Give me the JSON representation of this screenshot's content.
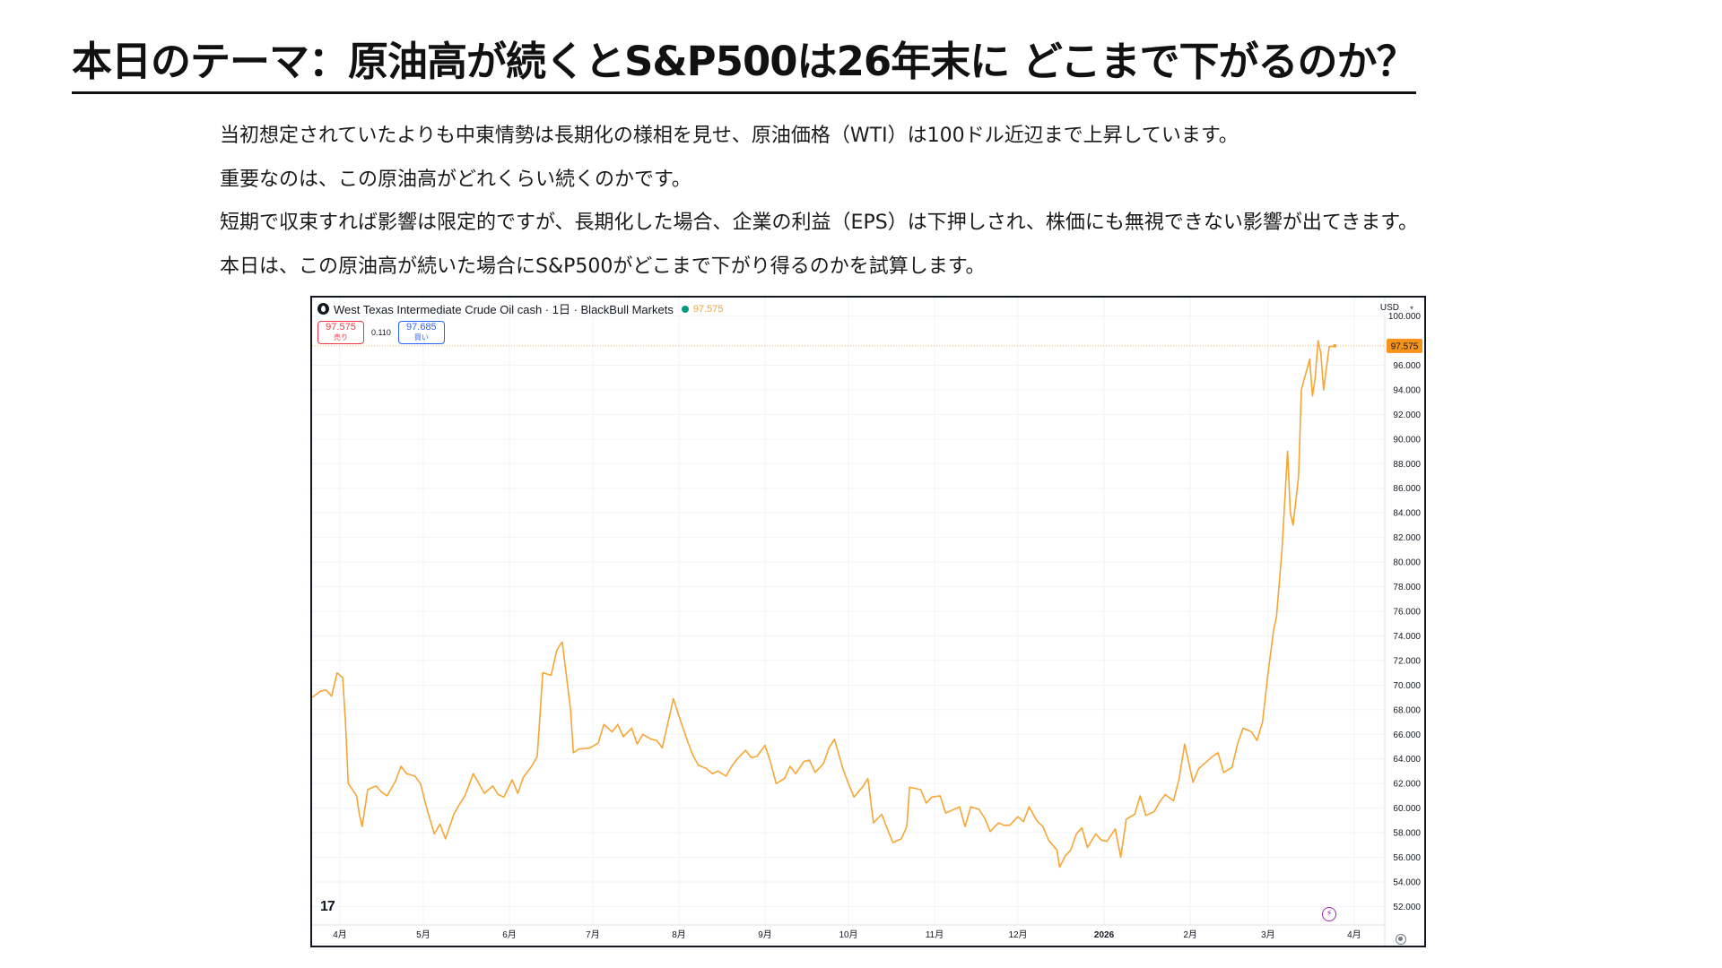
{
  "slide": {
    "title": "本日のテーマ：原油高が続くとS&P500は26年末に どこまで下がるのか？",
    "paragraphs": [
      "当初想定されていたよりも中東情勢は長期化の様相を見せ、原油価格（WTI）は100ドル近辺まで上昇しています。",
      "重要なのは、この原油高がどれくらい続くのかです。",
      "短期で収束すれば影響は限定的ですが、長期化した場合、企業の利益（EPS）は下押しされ、株価にも無視できない影響が出てきます。",
      "本日は、この原油高が続いた場合にS&P500がどこまで下がり得るのかを試算します。"
    ]
  },
  "chart_header": {
    "symbol_title": "West Texas Intermediate Crude Oil cash · 1日 · BlackBull Markets",
    "last_price": "97.575",
    "sell_price": "97.575",
    "sell_label": "売り",
    "spread": "0.110",
    "buy_price": "97.685",
    "buy_label": "買い",
    "currency": "USD",
    "logo_text": "17"
  },
  "colors": {
    "line": "#f7a534",
    "sell": "#f23645",
    "buy": "#2962ff",
    "grid": "#f0f3fa",
    "price_tag_bg": "#f7931a"
  },
  "icons": [
    "symbol-icon",
    "live-dot-icon",
    "caret-down-icon",
    "tradingview-logo",
    "lightning-icon",
    "settings-icon"
  ],
  "chart_data": {
    "type": "line",
    "title": "West Texas Intermediate Crude Oil cash · 1日 · BlackBull Markets",
    "xlabel": "",
    "ylabel": "",
    "ylim": [
      50.5,
      101.5
    ],
    "y_ticks": [
      52,
      54,
      56,
      58,
      60,
      62,
      64,
      66,
      68,
      70,
      72,
      74,
      76,
      78,
      80,
      82,
      84,
      86,
      88,
      90,
      92,
      94,
      96,
      100
    ],
    "x_tick_labels": [
      {
        "label": "4月",
        "x": "2025-04-01"
      },
      {
        "label": "5月",
        "x": "2025-05-01"
      },
      {
        "label": "6月",
        "x": "2025-06-01"
      },
      {
        "label": "7月",
        "x": "2025-07-01"
      },
      {
        "label": "8月",
        "x": "2025-08-01"
      },
      {
        "label": "9月",
        "x": "2025-09-01"
      },
      {
        "label": "10月",
        "x": "2025-10-01"
      },
      {
        "label": "11月",
        "x": "2025-11-01"
      },
      {
        "label": "12月",
        "x": "2025-12-01"
      },
      {
        "label": "2026",
        "x": "2026-01-01"
      },
      {
        "label": "2月",
        "x": "2026-02-01"
      },
      {
        "label": "3月",
        "x": "2026-03-01"
      },
      {
        "label": "4月",
        "x": "2026-04-01"
      }
    ],
    "xlim": [
      "2025-03-22",
      "2026-04-12"
    ],
    "grid": true,
    "last_value": 97.575,
    "series": [
      {
        "color": "#f7a534",
        "points": [
          [
            "2025-03-22",
            69.0
          ],
          [
            "2025-03-25",
            69.5
          ],
          [
            "2025-03-27",
            69.6
          ],
          [
            "2025-03-29",
            69.1
          ],
          [
            "2025-03-31",
            71.0
          ],
          [
            "2025-04-02",
            70.6
          ],
          [
            "2025-04-03",
            67.0
          ],
          [
            "2025-04-04",
            62.0
          ],
          [
            "2025-04-07",
            61.0
          ],
          [
            "2025-04-08",
            59.5
          ],
          [
            "2025-04-09",
            58.5
          ],
          [
            "2025-04-10",
            60.0
          ],
          [
            "2025-04-11",
            61.5
          ],
          [
            "2025-04-14",
            61.8
          ],
          [
            "2025-04-16",
            61.3
          ],
          [
            "2025-04-18",
            61.0
          ],
          [
            "2025-04-21",
            62.2
          ],
          [
            "2025-04-23",
            63.4
          ],
          [
            "2025-04-25",
            62.8
          ],
          [
            "2025-04-28",
            62.6
          ],
          [
            "2025-04-30",
            62.0
          ],
          [
            "2025-05-02",
            60.2
          ],
          [
            "2025-05-05",
            57.9
          ],
          [
            "2025-05-07",
            58.7
          ],
          [
            "2025-05-09",
            57.5
          ],
          [
            "2025-05-12",
            59.5
          ],
          [
            "2025-05-14",
            60.3
          ],
          [
            "2025-05-16",
            61.0
          ],
          [
            "2025-05-19",
            62.8
          ],
          [
            "2025-05-21",
            62.0
          ],
          [
            "2025-05-23",
            61.2
          ],
          [
            "2025-05-26",
            61.8
          ],
          [
            "2025-05-28",
            61.1
          ],
          [
            "2025-05-30",
            60.9
          ],
          [
            "2025-06-02",
            62.3
          ],
          [
            "2025-06-04",
            61.2
          ],
          [
            "2025-06-06",
            62.5
          ],
          [
            "2025-06-09",
            63.4
          ],
          [
            "2025-06-11",
            64.2
          ],
          [
            "2025-06-12",
            67.6
          ],
          [
            "2025-06-13",
            71.0
          ],
          [
            "2025-06-16",
            70.8
          ],
          [
            "2025-06-18",
            72.8
          ],
          [
            "2025-06-19",
            73.2
          ],
          [
            "2025-06-20",
            73.5
          ],
          [
            "2025-06-23",
            68.0
          ],
          [
            "2025-06-24",
            64.5
          ],
          [
            "2025-06-26",
            64.8
          ],
          [
            "2025-06-30",
            64.9
          ],
          [
            "2025-07-03",
            65.3
          ],
          [
            "2025-07-05",
            66.8
          ],
          [
            "2025-07-08",
            66.2
          ],
          [
            "2025-07-10",
            66.8
          ],
          [
            "2025-07-12",
            65.8
          ],
          [
            "2025-07-15",
            66.5
          ],
          [
            "2025-07-17",
            65.2
          ],
          [
            "2025-07-19",
            66.0
          ],
          [
            "2025-07-22",
            65.6
          ],
          [
            "2025-07-24",
            65.5
          ],
          [
            "2025-07-26",
            64.9
          ],
          [
            "2025-07-28",
            66.9
          ],
          [
            "2025-07-30",
            68.9
          ],
          [
            "2025-08-01",
            67.5
          ],
          [
            "2025-08-04",
            65.5
          ],
          [
            "2025-08-06",
            64.3
          ],
          [
            "2025-08-08",
            63.5
          ],
          [
            "2025-08-11",
            63.2
          ],
          [
            "2025-08-13",
            62.8
          ],
          [
            "2025-08-15",
            63.0
          ],
          [
            "2025-08-18",
            62.6
          ],
          [
            "2025-08-20",
            63.4
          ],
          [
            "2025-08-22",
            64.0
          ],
          [
            "2025-08-25",
            64.7
          ],
          [
            "2025-08-27",
            64.1
          ],
          [
            "2025-08-29",
            64.2
          ],
          [
            "2025-09-01",
            65.1
          ],
          [
            "2025-09-03",
            63.7
          ],
          [
            "2025-09-05",
            62.0
          ],
          [
            "2025-09-08",
            62.4
          ],
          [
            "2025-09-10",
            63.4
          ],
          [
            "2025-09-12",
            62.8
          ],
          [
            "2025-09-15",
            63.8
          ],
          [
            "2025-09-17",
            63.9
          ],
          [
            "2025-09-19",
            62.9
          ],
          [
            "2025-09-22",
            63.6
          ],
          [
            "2025-09-24",
            64.9
          ],
          [
            "2025-09-26",
            65.6
          ],
          [
            "2025-09-29",
            63.2
          ],
          [
            "2025-10-01",
            62.0
          ],
          [
            "2025-10-03",
            60.9
          ],
          [
            "2025-10-06",
            61.7
          ],
          [
            "2025-10-08",
            62.4
          ],
          [
            "2025-10-10",
            58.8
          ],
          [
            "2025-10-13",
            59.5
          ],
          [
            "2025-10-15",
            58.3
          ],
          [
            "2025-10-17",
            57.2
          ],
          [
            "2025-10-20",
            57.5
          ],
          [
            "2025-10-22",
            58.5
          ],
          [
            "2025-10-23",
            61.7
          ],
          [
            "2025-10-27",
            61.5
          ],
          [
            "2025-10-29",
            60.4
          ],
          [
            "2025-10-31",
            60.9
          ],
          [
            "2025-11-03",
            61.0
          ],
          [
            "2025-11-05",
            59.6
          ],
          [
            "2025-11-07",
            59.8
          ],
          [
            "2025-11-10",
            60.1
          ],
          [
            "2025-11-12",
            58.5
          ],
          [
            "2025-11-14",
            60.1
          ],
          [
            "2025-11-17",
            59.9
          ],
          [
            "2025-11-19",
            59.2
          ],
          [
            "2025-11-21",
            58.1
          ],
          [
            "2025-11-24",
            58.8
          ],
          [
            "2025-11-26",
            58.6
          ],
          [
            "2025-11-28",
            58.6
          ],
          [
            "2025-12-01",
            59.3
          ],
          [
            "2025-12-03",
            58.9
          ],
          [
            "2025-12-05",
            60.1
          ],
          [
            "2025-12-08",
            58.9
          ],
          [
            "2025-12-10",
            58.5
          ],
          [
            "2025-12-12",
            57.4
          ],
          [
            "2025-12-15",
            56.6
          ],
          [
            "2025-12-16",
            55.2
          ],
          [
            "2025-12-18",
            56.1
          ],
          [
            "2025-12-20",
            56.6
          ],
          [
            "2025-12-22",
            57.9
          ],
          [
            "2025-12-24",
            58.4
          ],
          [
            "2025-12-26",
            56.8
          ],
          [
            "2025-12-29",
            57.9
          ],
          [
            "2025-12-31",
            57.4
          ],
          [
            "2026-01-02",
            57.3
          ],
          [
            "2026-01-05",
            58.3
          ],
          [
            "2026-01-07",
            56.0
          ],
          [
            "2026-01-09",
            59.1
          ],
          [
            "2026-01-12",
            59.5
          ],
          [
            "2026-01-14",
            61.0
          ],
          [
            "2026-01-16",
            59.4
          ],
          [
            "2026-01-19",
            59.7
          ],
          [
            "2026-01-21",
            60.5
          ],
          [
            "2026-01-23",
            61.1
          ],
          [
            "2026-01-26",
            60.6
          ],
          [
            "2026-01-28",
            62.4
          ],
          [
            "2026-01-30",
            65.2
          ],
          [
            "2026-02-02",
            62.1
          ],
          [
            "2026-02-04",
            63.2
          ],
          [
            "2026-02-06",
            63.6
          ],
          [
            "2026-02-09",
            64.2
          ],
          [
            "2026-02-11",
            64.5
          ],
          [
            "2026-02-13",
            62.9
          ],
          [
            "2026-02-16",
            63.3
          ],
          [
            "2026-02-18",
            65.2
          ],
          [
            "2026-02-20",
            66.5
          ],
          [
            "2026-02-23",
            66.2
          ],
          [
            "2026-02-25",
            65.5
          ],
          [
            "2026-02-27",
            67.0
          ],
          [
            "2026-03-01",
            71.0
          ],
          [
            "2026-03-03",
            74.5
          ],
          [
            "2026-03-04",
            75.5
          ],
          [
            "2026-03-06",
            81.0
          ],
          [
            "2026-03-08",
            89.0
          ],
          [
            "2026-03-09",
            84.0
          ],
          [
            "2026-03-10",
            83.0
          ],
          [
            "2026-03-12",
            87.0
          ],
          [
            "2026-03-13",
            94.0
          ],
          [
            "2026-03-16",
            96.5
          ],
          [
            "2026-03-17",
            93.5
          ],
          [
            "2026-03-18",
            95.0
          ],
          [
            "2026-03-19",
            98.0
          ],
          [
            "2026-03-20",
            97.0
          ],
          [
            "2026-03-21",
            94.0
          ],
          [
            "2026-03-23",
            97.5
          ],
          [
            "2026-03-25",
            97.575
          ]
        ]
      }
    ]
  }
}
